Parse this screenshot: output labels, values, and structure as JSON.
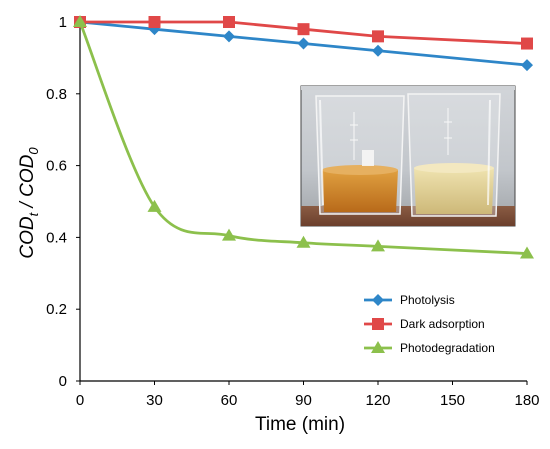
{
  "chart_data": {
    "type": "line",
    "xlabel": "Time (min)",
    "ylabel": {
      "main": "COD",
      "sub_t": "t",
      "sep": " / ",
      "sub_0": "0"
    },
    "x_ticks": [
      0,
      30,
      60,
      90,
      120,
      150,
      180
    ],
    "y_ticks": [
      0,
      0.2,
      0.4,
      0.6,
      0.8,
      1
    ],
    "y_tick_labels": [
      "0",
      "0.2",
      "0.4",
      "0.6",
      "0.8",
      "1"
    ],
    "xlim": [
      0,
      180
    ],
    "ylim": [
      0,
      1
    ],
    "grid": false,
    "legend_position": "bottom-right",
    "series": [
      {
        "name": "Photolysis",
        "color": "#2e86c8",
        "marker": "diamond",
        "smooth": false,
        "x": [
          0,
          30,
          60,
          90,
          120,
          180
        ],
        "y": [
          1.0,
          0.98,
          0.96,
          0.94,
          0.92,
          0.88
        ]
      },
      {
        "name": "Dark adsorption",
        "color": "#e04848",
        "marker": "square",
        "smooth": false,
        "x": [
          0,
          30,
          60,
          90,
          120,
          180
        ],
        "y": [
          1.0,
          1.0,
          1.0,
          0.98,
          0.96,
          0.94
        ]
      },
      {
        "name": "Photodegradation",
        "color": "#8cc04c",
        "marker": "triangle",
        "smooth": true,
        "x": [
          0,
          30,
          60,
          90,
          120,
          180
        ],
        "y": [
          1.0,
          0.485,
          0.405,
          0.385,
          0.375,
          0.355
        ]
      }
    ],
    "inset_image": {
      "description": "photo of two glass beakers",
      "content": "beakers-photo"
    }
  }
}
